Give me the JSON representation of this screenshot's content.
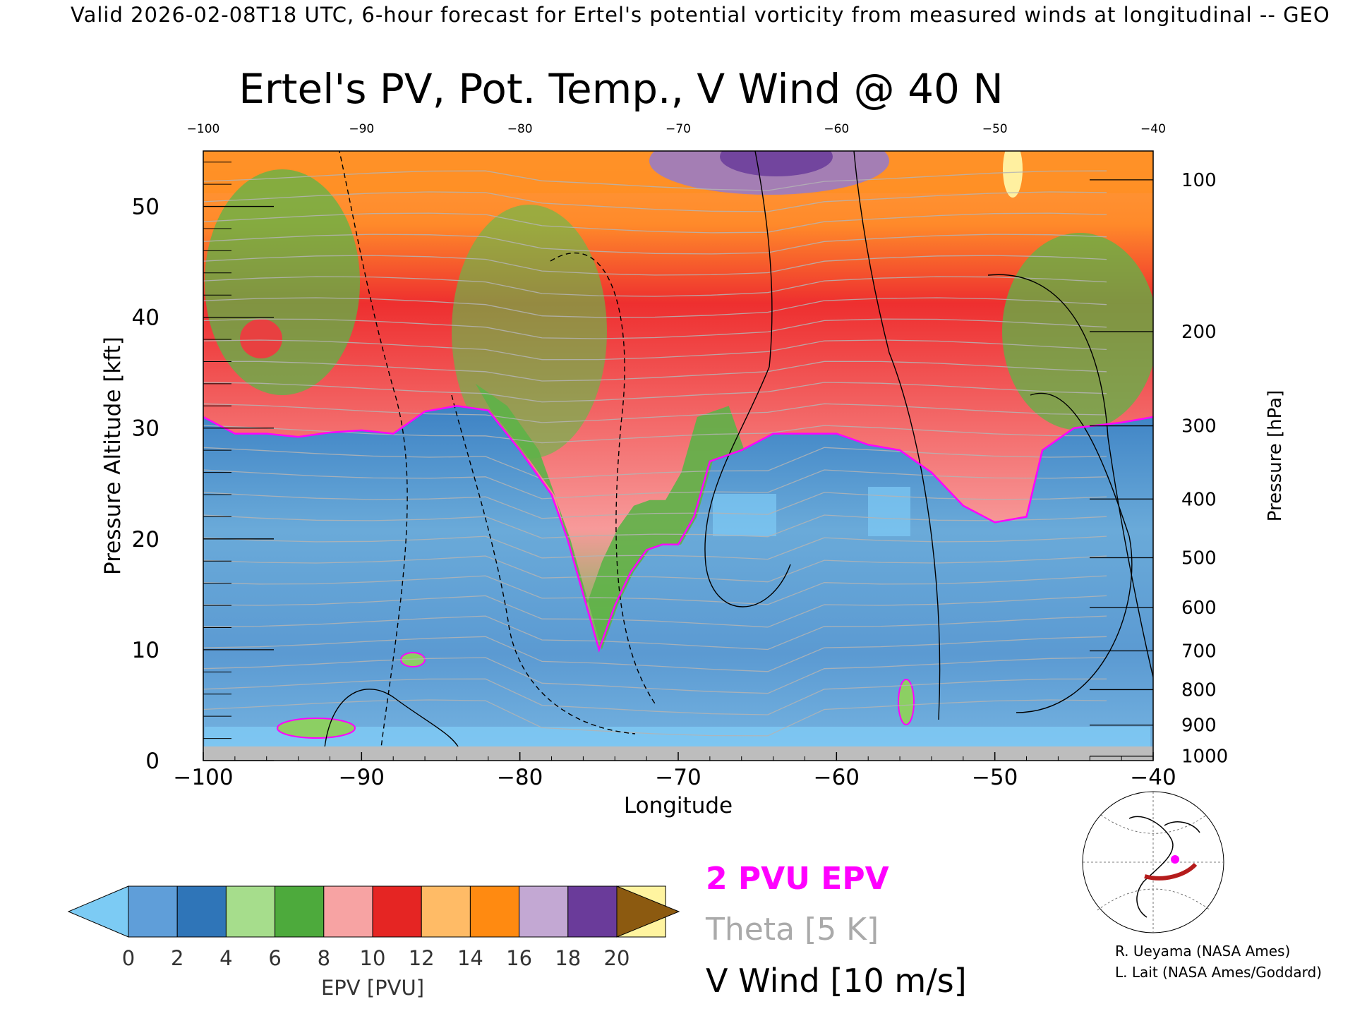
{
  "top_banner": "Valid 2026-02-08T18 UTC, 6-hour forecast for Ertel's potential vorticity from measured winds at longitudinal -- GEO",
  "chart_data": {
    "type": "heatmap",
    "title": "Ertel's PV, Pot. Temp., V Wind @ 40 N",
    "xlabel": "Longitude",
    "ylabel_left": "Pressure Altitude [kft]",
    "ylabel_right": "Pressure [hPa]",
    "xlim": [
      -100,
      -40
    ],
    "ylim": [
      0,
      55
    ],
    "x_ticks": [
      -100,
      -90,
      -80,
      -70,
      -60,
      -50,
      -40
    ],
    "x_tick_labels": [
      "−100",
      "−90",
      "−80",
      "−70",
      "−60",
      "−50",
      "−40"
    ],
    "top_x_tick_labels": [
      "−100",
      "−90",
      "−80",
      "−70",
      "−60",
      "−50",
      "−40"
    ],
    "y_ticks": [
      0,
      10,
      20,
      30,
      40,
      50
    ],
    "y_tick_labels": [
      "0",
      "10",
      "20",
      "30",
      "40",
      "50"
    ],
    "pressure_ticks": [
      {
        "hpa": "100",
        "kft": 52.4
      },
      {
        "hpa": "200",
        "kft": 38.7
      },
      {
        "hpa": "300",
        "kft": 30.2
      },
      {
        "hpa": "400",
        "kft": 23.6
      },
      {
        "hpa": "500",
        "kft": 18.3
      },
      {
        "hpa": "600",
        "kft": 13.8
      },
      {
        "hpa": "700",
        "kft": 9.9
      },
      {
        "hpa": "800",
        "kft": 6.4
      },
      {
        "hpa": "900",
        "kft": 3.2
      },
      {
        "hpa": "1000",
        "kft": 0.4
      }
    ],
    "tropopause_2pvu_kft": [
      [
        -100,
        31
      ],
      [
        -98,
        29.5
      ],
      [
        -96,
        29.5
      ],
      [
        -94,
        29.2
      ],
      [
        -92,
        29.6
      ],
      [
        -90,
        29.8
      ],
      [
        -88,
        29.5
      ],
      [
        -86,
        31.5
      ],
      [
        -84,
        32
      ],
      [
        -82,
        31.6
      ],
      [
        -80,
        28
      ],
      [
        -79,
        26
      ],
      [
        -78,
        24
      ],
      [
        -77,
        20
      ],
      [
        -76,
        15
      ],
      [
        -75,
        10
      ],
      [
        -74,
        14
      ],
      [
        -73,
        17
      ],
      [
        -72,
        19
      ],
      [
        -71,
        19.5
      ],
      [
        -70,
        19.5
      ],
      [
        -69,
        22
      ],
      [
        -68,
        27
      ],
      [
        -66,
        28
      ],
      [
        -64,
        29.5
      ],
      [
        -62,
        29.5
      ],
      [
        -60,
        29.5
      ],
      [
        -58,
        28.5
      ],
      [
        -56,
        28
      ],
      [
        -54,
        26
      ],
      [
        -52,
        23
      ],
      [
        -50,
        21.5
      ],
      [
        -48,
        22
      ],
      [
        -47,
        28
      ],
      [
        -45,
        30
      ],
      [
        -42,
        30.5
      ],
      [
        -40,
        31
      ]
    ],
    "colorbar": {
      "label": "EPV [PVU]",
      "ticks": [
        "0",
        "2",
        "4",
        "6",
        "8",
        "10",
        "12",
        "14",
        "16",
        "18",
        "20"
      ],
      "colors": [
        "#5f9ed9",
        "#2f75b8",
        "#a6dd8c",
        "#4daa3c",
        "#f7a3a3",
        "#e52523",
        "#ffbb66",
        "#ff8a11",
        "#c3a8d3",
        "#6a3b9a",
        "#fff4a0",
        "#8c5a10"
      ],
      "under_color": "#7ccbf4",
      "over_color": "#8c5a10"
    },
    "legend": [
      {
        "name": "2 PVU EPV",
        "color": "#ff00ff"
      },
      {
        "name": "Theta [5 K]",
        "color": "#aaaaaa"
      },
      {
        "name": "V Wind [10 m/s]",
        "color": "#000000"
      }
    ]
  },
  "credits": [
    "R. Ueyama (NASA Ames)",
    "L. Lait (NASA Ames/Goddard)"
  ]
}
